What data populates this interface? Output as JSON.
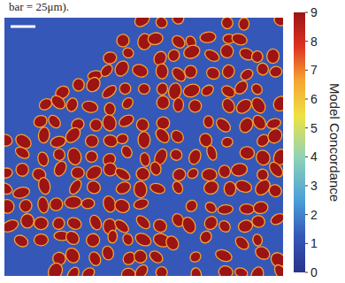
{
  "chart_data": {
    "type": "heatmap",
    "caption": "bar = 25μm).",
    "colorbar": {
      "label": "Model Concordance",
      "range": [
        0,
        9
      ],
      "ticks": [
        0,
        1,
        2,
        3,
        4,
        5,
        6,
        7,
        8,
        9
      ]
    }
  }
}
